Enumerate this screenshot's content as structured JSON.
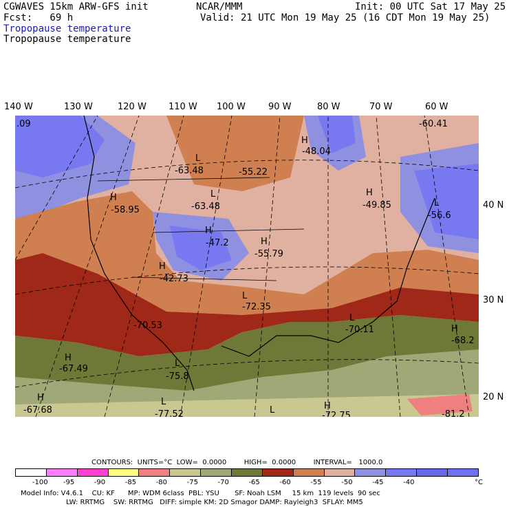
{
  "header": {
    "model": "CGWAVES 15km ARW-GFS init",
    "fcst": "Fcst:   69 h",
    "org": "NCAR/MMM",
    "init": "Init: 00 UTC Sat 17 May 25",
    "valid": "Valid: 21 UTC Mon 19 May 25 (16 CDT Mon 19 May 25)",
    "field_blue": "Tropopause temperature",
    "field_black": "Tropopause temperature"
  },
  "longitudes": [
    "140 W",
    "130 W",
    "120 W",
    "110 W",
    "100 W",
    "90 W",
    "80 W",
    "70 W",
    "60 W"
  ],
  "latitudes": [
    "40 N",
    "30 N",
    "20 N"
  ],
  "map_labels": [
    {
      "sym": "L",
      "val": "-63.48"
    },
    {
      "sym": "",
      "val": "-55.22"
    },
    {
      "sym": "H",
      "val": "-48.04"
    },
    {
      "sym": "",
      "val": "-60.41"
    },
    {
      "sym": "",
      "val": ".09"
    },
    {
      "sym": "H",
      "val": "-58.95"
    },
    {
      "sym": "L",
      "val": "-63.48"
    },
    {
      "sym": "H",
      "val": "-49.85"
    },
    {
      "sym": "L",
      "val": "-56.6"
    },
    {
      "sym": "H",
      "val": "-47.2"
    },
    {
      "sym": "H",
      "val": "-55.79"
    },
    {
      "sym": "H",
      "val": "-42.73"
    },
    {
      "sym": "L",
      "val": "-72.35"
    },
    {
      "sym": "",
      "val": "-70.53"
    },
    {
      "sym": "L",
      "val": "-70.11"
    },
    {
      "sym": "H",
      "val": "-68.2"
    },
    {
      "sym": "H",
      "val": "-67.49"
    },
    {
      "sym": "L",
      "val": "-75.8"
    },
    {
      "sym": "H",
      "val": "-67.68"
    },
    {
      "sym": "L",
      "val": "-77.52"
    },
    {
      "sym": "L",
      "val": ""
    },
    {
      "sym": "H",
      "val": "-72.75"
    },
    {
      "sym": "",
      "val": "-81.2"
    }
  ],
  "contours": {
    "text": "CONTOURS:  UNITS=°C  LOW=  0.0000        HIGH=  0.0000        INTERVAL=   1000.0"
  },
  "colorbar": {
    "colors": [
      "#ffffff",
      "#ff80ff",
      "#ff40d0",
      "#ffff80",
      "#f08080",
      "#c8c890",
      "#a0a878",
      "#707838",
      "#a02818",
      "#d08050",
      "#e0b0a0",
      "#9090e0",
      "#7878f0",
      "#6868e8",
      "#7070f0"
    ],
    "ticks": [
      "-100",
      "-95",
      "-90",
      "-85",
      "-80",
      "-75",
      "-70",
      "-65",
      "-60",
      "-55",
      "-50",
      "-45",
      "-40"
    ],
    "unit": "°C"
  },
  "footer": {
    "line1": "Model Info: V4.6.1    CU: KF      MP: WDM 6class  PBL: YSU       SF: Noah LSM     15 km  119 levels  90 sec",
    "line2": "LW: RRTMG    SW: RRTMG   DIFF: simple KM: 2D Smagor DAMP: Rayleigh3  SFLAY: MM5"
  }
}
